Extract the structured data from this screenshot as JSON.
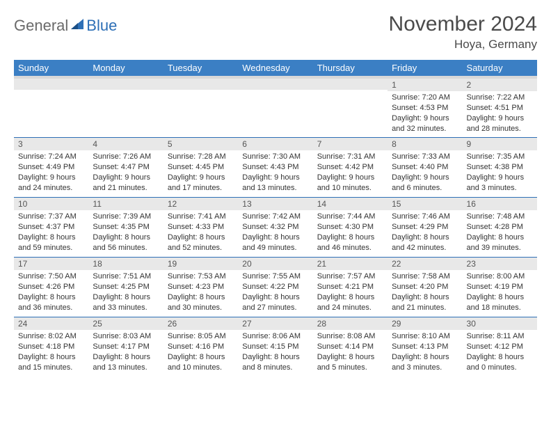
{
  "brand": {
    "general": "General",
    "blue": "Blue"
  },
  "title": {
    "month": "November 2024",
    "location": "Hoya, Germany"
  },
  "colors": {
    "header_bg": "#3b7fc4",
    "header_text": "#ffffff",
    "daynum_bg": "#e8e8e8",
    "row_divider": "#2d6fb6",
    "logo_gray": "#6a6a6a",
    "logo_blue": "#2d6fb6"
  },
  "weekdays": [
    "Sunday",
    "Monday",
    "Tuesday",
    "Wednesday",
    "Thursday",
    "Friday",
    "Saturday"
  ],
  "weeks": [
    [
      {
        "num": "",
        "sunrise": "",
        "sunset": "",
        "daylight": ""
      },
      {
        "num": "",
        "sunrise": "",
        "sunset": "",
        "daylight": ""
      },
      {
        "num": "",
        "sunrise": "",
        "sunset": "",
        "daylight": ""
      },
      {
        "num": "",
        "sunrise": "",
        "sunset": "",
        "daylight": ""
      },
      {
        "num": "",
        "sunrise": "",
        "sunset": "",
        "daylight": ""
      },
      {
        "num": "1",
        "sunrise": "Sunrise: 7:20 AM",
        "sunset": "Sunset: 4:53 PM",
        "daylight": "Daylight: 9 hours and 32 minutes."
      },
      {
        "num": "2",
        "sunrise": "Sunrise: 7:22 AM",
        "sunset": "Sunset: 4:51 PM",
        "daylight": "Daylight: 9 hours and 28 minutes."
      }
    ],
    [
      {
        "num": "3",
        "sunrise": "Sunrise: 7:24 AM",
        "sunset": "Sunset: 4:49 PM",
        "daylight": "Daylight: 9 hours and 24 minutes."
      },
      {
        "num": "4",
        "sunrise": "Sunrise: 7:26 AM",
        "sunset": "Sunset: 4:47 PM",
        "daylight": "Daylight: 9 hours and 21 minutes."
      },
      {
        "num": "5",
        "sunrise": "Sunrise: 7:28 AM",
        "sunset": "Sunset: 4:45 PM",
        "daylight": "Daylight: 9 hours and 17 minutes."
      },
      {
        "num": "6",
        "sunrise": "Sunrise: 7:30 AM",
        "sunset": "Sunset: 4:43 PM",
        "daylight": "Daylight: 9 hours and 13 minutes."
      },
      {
        "num": "7",
        "sunrise": "Sunrise: 7:31 AM",
        "sunset": "Sunset: 4:42 PM",
        "daylight": "Daylight: 9 hours and 10 minutes."
      },
      {
        "num": "8",
        "sunrise": "Sunrise: 7:33 AM",
        "sunset": "Sunset: 4:40 PM",
        "daylight": "Daylight: 9 hours and 6 minutes."
      },
      {
        "num": "9",
        "sunrise": "Sunrise: 7:35 AM",
        "sunset": "Sunset: 4:38 PM",
        "daylight": "Daylight: 9 hours and 3 minutes."
      }
    ],
    [
      {
        "num": "10",
        "sunrise": "Sunrise: 7:37 AM",
        "sunset": "Sunset: 4:37 PM",
        "daylight": "Daylight: 8 hours and 59 minutes."
      },
      {
        "num": "11",
        "sunrise": "Sunrise: 7:39 AM",
        "sunset": "Sunset: 4:35 PM",
        "daylight": "Daylight: 8 hours and 56 minutes."
      },
      {
        "num": "12",
        "sunrise": "Sunrise: 7:41 AM",
        "sunset": "Sunset: 4:33 PM",
        "daylight": "Daylight: 8 hours and 52 minutes."
      },
      {
        "num": "13",
        "sunrise": "Sunrise: 7:42 AM",
        "sunset": "Sunset: 4:32 PM",
        "daylight": "Daylight: 8 hours and 49 minutes."
      },
      {
        "num": "14",
        "sunrise": "Sunrise: 7:44 AM",
        "sunset": "Sunset: 4:30 PM",
        "daylight": "Daylight: 8 hours and 46 minutes."
      },
      {
        "num": "15",
        "sunrise": "Sunrise: 7:46 AM",
        "sunset": "Sunset: 4:29 PM",
        "daylight": "Daylight: 8 hours and 42 minutes."
      },
      {
        "num": "16",
        "sunrise": "Sunrise: 7:48 AM",
        "sunset": "Sunset: 4:28 PM",
        "daylight": "Daylight: 8 hours and 39 minutes."
      }
    ],
    [
      {
        "num": "17",
        "sunrise": "Sunrise: 7:50 AM",
        "sunset": "Sunset: 4:26 PM",
        "daylight": "Daylight: 8 hours and 36 minutes."
      },
      {
        "num": "18",
        "sunrise": "Sunrise: 7:51 AM",
        "sunset": "Sunset: 4:25 PM",
        "daylight": "Daylight: 8 hours and 33 minutes."
      },
      {
        "num": "19",
        "sunrise": "Sunrise: 7:53 AM",
        "sunset": "Sunset: 4:23 PM",
        "daylight": "Daylight: 8 hours and 30 minutes."
      },
      {
        "num": "20",
        "sunrise": "Sunrise: 7:55 AM",
        "sunset": "Sunset: 4:22 PM",
        "daylight": "Daylight: 8 hours and 27 minutes."
      },
      {
        "num": "21",
        "sunrise": "Sunrise: 7:57 AM",
        "sunset": "Sunset: 4:21 PM",
        "daylight": "Daylight: 8 hours and 24 minutes."
      },
      {
        "num": "22",
        "sunrise": "Sunrise: 7:58 AM",
        "sunset": "Sunset: 4:20 PM",
        "daylight": "Daylight: 8 hours and 21 minutes."
      },
      {
        "num": "23",
        "sunrise": "Sunrise: 8:00 AM",
        "sunset": "Sunset: 4:19 PM",
        "daylight": "Daylight: 8 hours and 18 minutes."
      }
    ],
    [
      {
        "num": "24",
        "sunrise": "Sunrise: 8:02 AM",
        "sunset": "Sunset: 4:18 PM",
        "daylight": "Daylight: 8 hours and 15 minutes."
      },
      {
        "num": "25",
        "sunrise": "Sunrise: 8:03 AM",
        "sunset": "Sunset: 4:17 PM",
        "daylight": "Daylight: 8 hours and 13 minutes."
      },
      {
        "num": "26",
        "sunrise": "Sunrise: 8:05 AM",
        "sunset": "Sunset: 4:16 PM",
        "daylight": "Daylight: 8 hours and 10 minutes."
      },
      {
        "num": "27",
        "sunrise": "Sunrise: 8:06 AM",
        "sunset": "Sunset: 4:15 PM",
        "daylight": "Daylight: 8 hours and 8 minutes."
      },
      {
        "num": "28",
        "sunrise": "Sunrise: 8:08 AM",
        "sunset": "Sunset: 4:14 PM",
        "daylight": "Daylight: 8 hours and 5 minutes."
      },
      {
        "num": "29",
        "sunrise": "Sunrise: 8:10 AM",
        "sunset": "Sunset: 4:13 PM",
        "daylight": "Daylight: 8 hours and 3 minutes."
      },
      {
        "num": "30",
        "sunrise": "Sunrise: 8:11 AM",
        "sunset": "Sunset: 4:12 PM",
        "daylight": "Daylight: 8 hours and 0 minutes."
      }
    ]
  ]
}
